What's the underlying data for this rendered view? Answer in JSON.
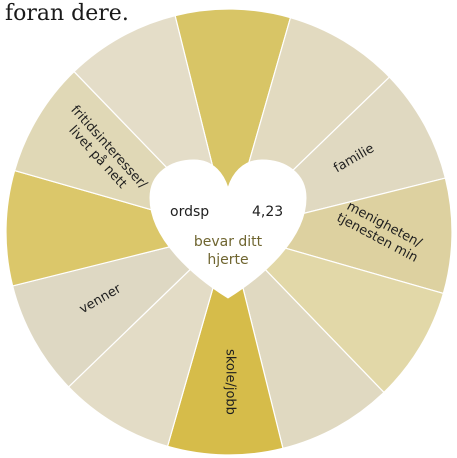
{
  "top_text": "foran dere.",
  "wheel": {
    "segments": [
      {
        "name": "segment-1",
        "color": "#d8c566",
        "label_lines": []
      },
      {
        "name": "segment-2",
        "color": "#e2dac0",
        "label_lines": []
      },
      {
        "name": "segment-3",
        "color": "#e0d9c1",
        "label_lines": [
          "familie"
        ]
      },
      {
        "name": "segment-4",
        "color": "#ddd1a0",
        "label_lines": [
          "menigheten/",
          "tjenesten min"
        ]
      },
      {
        "name": "segment-5",
        "color": "#e2d8a8",
        "label_lines": []
      },
      {
        "name": "segment-6",
        "color": "#e0d9c1",
        "label_lines": []
      },
      {
        "name": "segment-7",
        "color": "#d6bc4a",
        "label_lines": [
          "skole/jobb"
        ]
      },
      {
        "name": "segment-8",
        "color": "#e3dcc6",
        "label_lines": []
      },
      {
        "name": "segment-9",
        "color": "#ded8c3",
        "label_lines": [
          "venner"
        ]
      },
      {
        "name": "segment-10",
        "color": "#dbc76a",
        "label_lines": []
      },
      {
        "name": "segment-11",
        "color": "#e0d8b6",
        "label_lines": [
          "fritidsinteresser/",
          "livet på nett"
        ]
      },
      {
        "name": "segment-12",
        "color": "#e4ddc8",
        "label_lines": []
      }
    ]
  },
  "heart": {
    "left_text": "ordsp",
    "right_text": "4,23",
    "caption_line1": "bevar ditt",
    "caption_line2": "hjerte",
    "color": "#ffffff"
  }
}
